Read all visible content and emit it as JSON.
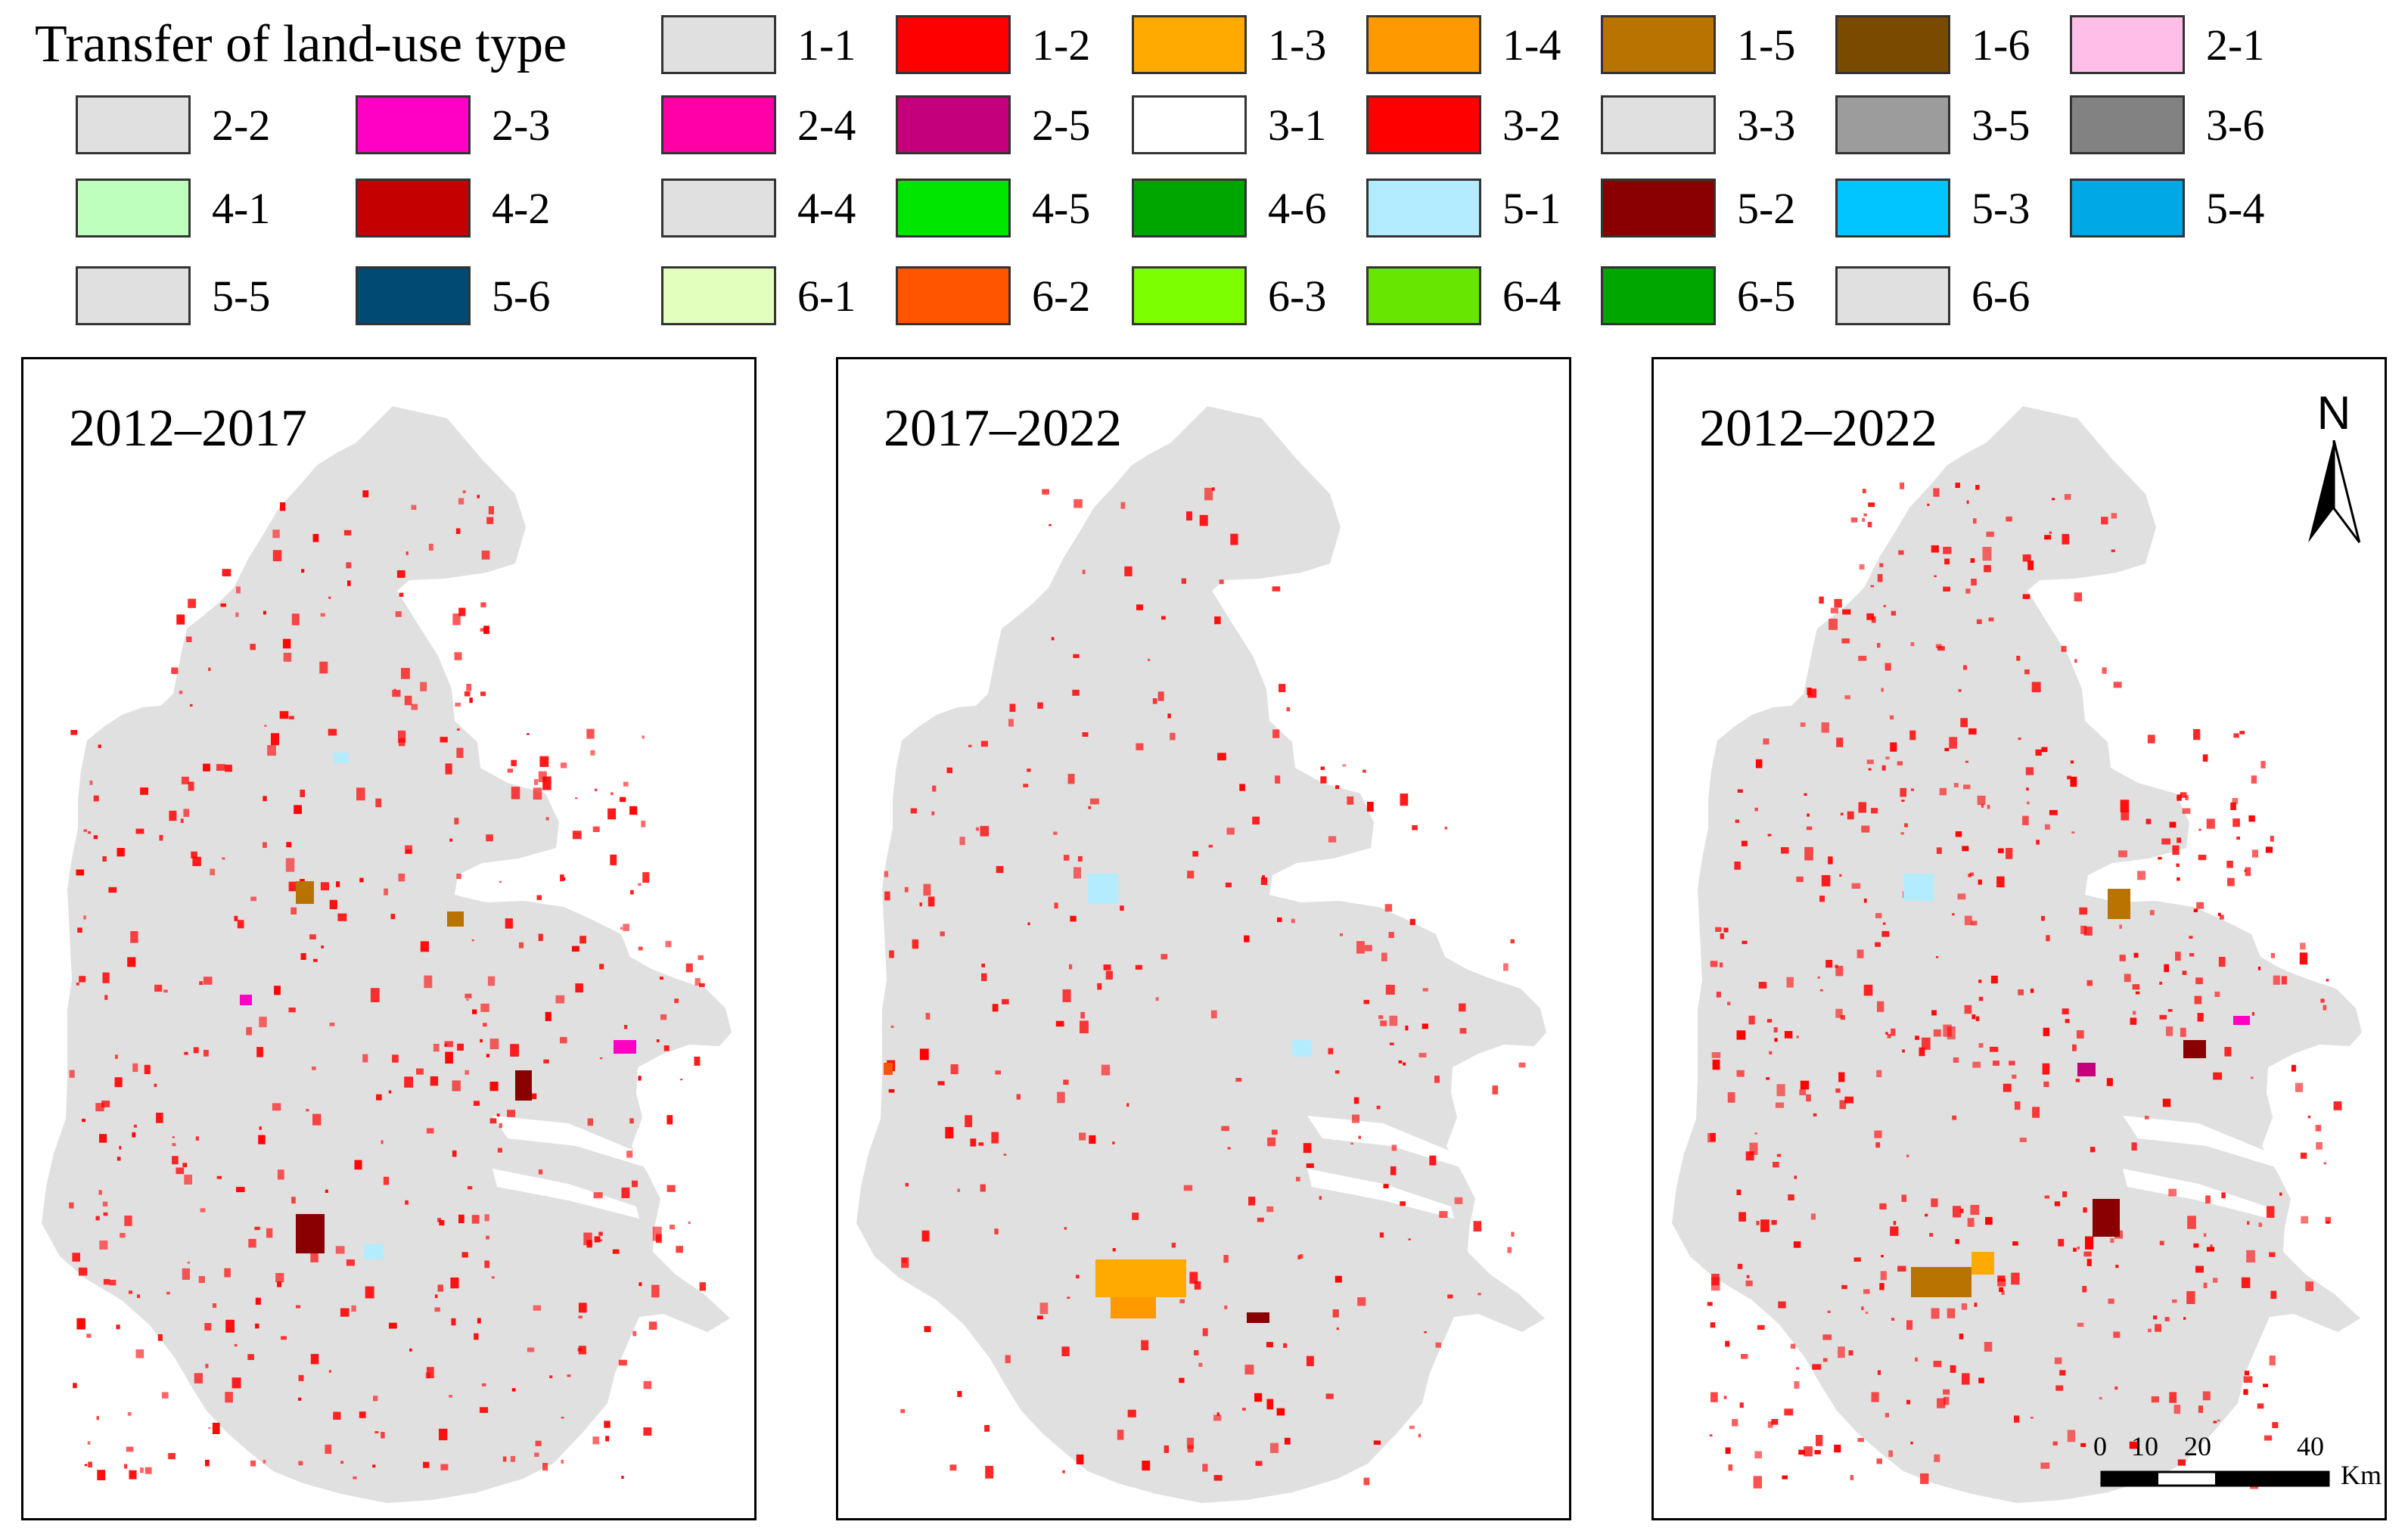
{
  "legend": {
    "title": "Transfer of land-use type",
    "items": [
      {
        "label": "1-1",
        "color": "#e0e0e0"
      },
      {
        "label": "1-2",
        "color": "#ff0000"
      },
      {
        "label": "1-3",
        "color": "#ffaa00"
      },
      {
        "label": "1-4",
        "color": "#ff9900"
      },
      {
        "label": "1-5",
        "color": "#b87300"
      },
      {
        "label": "1-6",
        "color": "#7a4a00"
      },
      {
        "label": "2-1",
        "color": "#ffbee8"
      },
      {
        "label": "2-2",
        "color": "#e0e0e0"
      },
      {
        "label": "2-3",
        "color": "#ff00c5"
      },
      {
        "label": "2-4",
        "color": "#ff00a6"
      },
      {
        "label": "2-5",
        "color": "#c5007c"
      },
      {
        "label": "3-1",
        "color": "#ffffff"
      },
      {
        "label": "3-2",
        "color": "#ff0000"
      },
      {
        "label": "3-3",
        "color": "#e0e0e0"
      },
      {
        "label": "3-5",
        "color": "#9c9c9c"
      },
      {
        "label": "3-6",
        "color": "#828282"
      },
      {
        "label": "4-1",
        "color": "#beffbe"
      },
      {
        "label": "4-2",
        "color": "#c40000"
      },
      {
        "label": "4-4",
        "color": "#e0e0e0"
      },
      {
        "label": "4-5",
        "color": "#00e600"
      },
      {
        "label": "4-6",
        "color": "#00a600"
      },
      {
        "label": "5-1",
        "color": "#b4ecff"
      },
      {
        "label": "5-2",
        "color": "#8a0000"
      },
      {
        "label": "5-3",
        "color": "#00c5ff"
      },
      {
        "label": "5-4",
        "color": "#00a9e6"
      },
      {
        "label": "5-5",
        "color": "#e0e0e0"
      },
      {
        "label": "5-6",
        "color": "#004a73"
      },
      {
        "label": "6-1",
        "color": "#e3ffbe"
      },
      {
        "label": "6-2",
        "color": "#ff5500"
      },
      {
        "label": "6-3",
        "color": "#7cff00"
      },
      {
        "label": "6-4",
        "color": "#66e600"
      },
      {
        "label": "6-5",
        "color": "#00a600"
      },
      {
        "label": "6-6",
        "color": "#e0e0e0"
      }
    ]
  },
  "maps": [
    {
      "title": "2012–2017"
    },
    {
      "title": "2017–2022"
    },
    {
      "title": "2012–2022"
    }
  ],
  "north_arrow": {
    "letter": "N"
  },
  "scale_bar": {
    "ticks": [
      "0",
      "10",
      "20",
      "40"
    ],
    "unit": "Km"
  },
  "colors": {
    "region_fill": "#e0e0e0",
    "change_red": "#ff0000"
  }
}
